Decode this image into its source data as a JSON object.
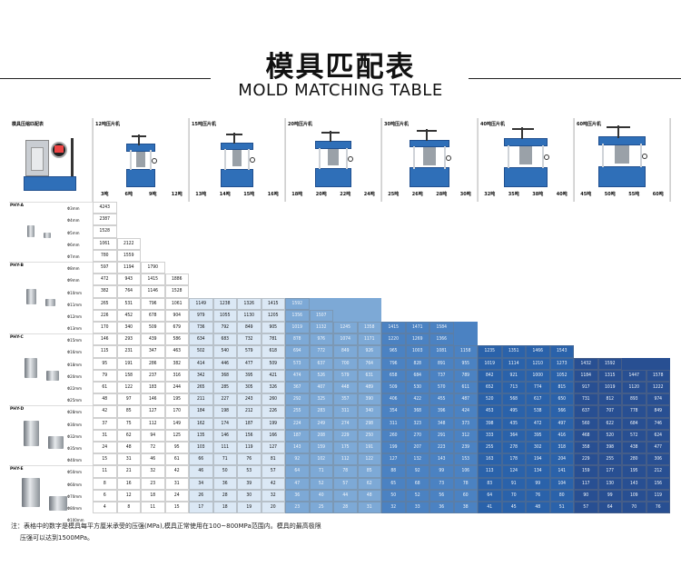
{
  "header": {
    "title_zh": "模具匹配表",
    "title_en": "MOLD MATCHING TABLE"
  },
  "corner_label": "模具压缩匹配表",
  "presses": [
    {
      "name": "12吨压片机",
      "tons": [
        "3吨",
        "6吨",
        "9吨",
        "12吨"
      ]
    },
    {
      "name": "15吨压片机",
      "tons": [
        "13吨",
        "14吨",
        "15吨",
        "16吨"
      ]
    },
    {
      "name": "20吨压片机",
      "tons": [
        "18吨",
        "20吨",
        "22吨",
        "24吨"
      ]
    },
    {
      "name": "30吨压片机",
      "tons": [
        "25吨",
        "26吨",
        "28吨",
        "30吨"
      ]
    },
    {
      "name": "40吨压片机",
      "tons": [
        "32吨",
        "35吨",
        "38吨",
        "40吨"
      ]
    },
    {
      "name": "60吨压片机",
      "tons": [
        "45吨",
        "50吨",
        "55吨",
        "60吨"
      ]
    }
  ],
  "die_groups": [
    {
      "name": "PHY-A",
      "sizes": [
        "Φ3mm",
        "Φ4mm",
        "Φ5mm",
        "Φ6mm",
        "Φ7mm"
      ]
    },
    {
      "name": "PHY-B",
      "sizes": [
        "Φ8mm",
        "Φ9mm",
        "Φ10mm",
        "Φ11mm",
        "Φ12mm",
        "Φ13mm"
      ]
    },
    {
      "name": "PHY-C",
      "sizes": [
        "Φ15mm",
        "Φ16mm",
        "Φ18mm",
        "Φ20mm",
        "Φ22mm",
        "Φ25mm"
      ]
    },
    {
      "name": "PHY-D",
      "sizes": [
        "Φ28mm",
        "Φ30mm",
        "Φ32mm",
        "Φ35mm",
        "Φ40mm"
      ]
    },
    {
      "name": "PHY-E",
      "sizes": [
        "Φ50mm",
        "Φ60mm",
        "Φ70mm",
        "Φ80mm",
        "Φ100mm"
      ]
    }
  ],
  "table_rows": [
    [
      "4243"
    ],
    [
      "2387"
    ],
    [
      "1528"
    ],
    [
      "1061",
      "2122"
    ],
    [
      "780",
      "1559"
    ],
    [
      "597",
      "1194",
      "1790"
    ],
    [
      "472",
      "943",
      "1415",
      "1886"
    ],
    [
      "382",
      "764",
      "1146",
      "1528"
    ],
    [
      "265",
      "531",
      "796",
      "1061",
      "1149",
      "1238",
      "1326",
      "1415",
      "1592"
    ],
    [
      "226",
      "452",
      "678",
      "904",
      "979",
      "1055",
      "1130",
      "1205",
      "1356",
      "1507"
    ],
    [
      "170",
      "340",
      "509",
      "679",
      "736",
      "792",
      "849",
      "905",
      "1019",
      "1132",
      "1245",
      "1358",
      "1415",
      "1471",
      "1584"
    ],
    [
      "146",
      "293",
      "439",
      "586",
      "634",
      "683",
      "732",
      "781",
      "878",
      "976",
      "1074",
      "1171",
      "1220",
      "1269",
      "1366"
    ],
    [
      "115",
      "231",
      "347",
      "463",
      "502",
      "540",
      "579",
      "618",
      "694",
      "772",
      "849",
      "926",
      "965",
      "1003",
      "1081",
      "1158",
      "1235",
      "1351",
      "1466",
      "1543"
    ],
    [
      "95",
      "191",
      "286",
      "382",
      "414",
      "446",
      "477",
      "509",
      "573",
      "637",
      "700",
      "764",
      "796",
      "828",
      "891",
      "955",
      "1019",
      "1114",
      "1210",
      "1273",
      "1432",
      "1592"
    ],
    [
      "79",
      "158",
      "237",
      "316",
      "342",
      "368",
      "395",
      "421",
      "474",
      "526",
      "579",
      "631",
      "658",
      "684",
      "737",
      "789",
      "842",
      "921",
      "1000",
      "1052",
      "1184",
      "1315",
      "1447",
      "1578"
    ],
    [
      "61",
      "122",
      "183",
      "244",
      "265",
      "285",
      "305",
      "326",
      "367",
      "407",
      "448",
      "489",
      "509",
      "530",
      "570",
      "611",
      "652",
      "713",
      "774",
      "815",
      "917",
      "1019",
      "1120",
      "1222"
    ],
    [
      "48",
      "97",
      "146",
      "195",
      "211",
      "227",
      "243",
      "260",
      "292",
      "325",
      "357",
      "390",
      "406",
      "422",
      "455",
      "487",
      "520",
      "568",
      "617",
      "650",
      "731",
      "812",
      "893",
      "974"
    ],
    [
      "42",
      "85",
      "127",
      "170",
      "184",
      "198",
      "212",
      "226",
      "255",
      "283",
      "311",
      "340",
      "354",
      "368",
      "396",
      "424",
      "453",
      "495",
      "538",
      "566",
      "637",
      "707",
      "778",
      "849"
    ],
    [
      "37",
      "75",
      "112",
      "149",
      "162",
      "174",
      "187",
      "199",
      "224",
      "249",
      "274",
      "298",
      "311",
      "323",
      "348",
      "373",
      "398",
      "435",
      "472",
      "497",
      "560",
      "622",
      "684",
      "746"
    ],
    [
      "31",
      "62",
      "94",
      "125",
      "135",
      "146",
      "156",
      "166",
      "187",
      "208",
      "229",
      "250",
      "260",
      "270",
      "291",
      "312",
      "333",
      "364",
      "395",
      "416",
      "468",
      "520",
      "572",
      "624"
    ],
    [
      "24",
      "48",
      "72",
      "95",
      "103",
      "111",
      "119",
      "127",
      "143",
      "159",
      "175",
      "191",
      "199",
      "207",
      "223",
      "239",
      "255",
      "278",
      "302",
      "318",
      "358",
      "398",
      "438",
      "477"
    ],
    [
      "15",
      "31",
      "46",
      "61",
      "66",
      "71",
      "76",
      "81",
      "92",
      "102",
      "112",
      "122",
      "127",
      "132",
      "143",
      "153",
      "163",
      "178",
      "194",
      "204",
      "229",
      "255",
      "280",
      "306"
    ],
    [
      "11",
      "21",
      "32",
      "42",
      "46",
      "50",
      "53",
      "57",
      "64",
      "71",
      "78",
      "85",
      "88",
      "92",
      "99",
      "106",
      "113",
      "124",
      "134",
      "141",
      "159",
      "177",
      "195",
      "212"
    ],
    [
      "8",
      "16",
      "23",
      "31",
      "34",
      "36",
      "39",
      "42",
      "47",
      "52",
      "57",
      "62",
      "65",
      "68",
      "73",
      "78",
      "83",
      "91",
      "99",
      "104",
      "117",
      "130",
      "143",
      "156"
    ],
    [
      "6",
      "12",
      "18",
      "24",
      "26",
      "28",
      "30",
      "32",
      "36",
      "40",
      "44",
      "48",
      "50",
      "52",
      "56",
      "60",
      "64",
      "70",
      "76",
      "80",
      "90",
      "99",
      "109",
      "119"
    ],
    [
      "4",
      "8",
      "11",
      "15",
      "17",
      "18",
      "19",
      "20",
      "23",
      "25",
      "28",
      "31",
      "32",
      "33",
      "36",
      "38",
      "41",
      "45",
      "48",
      "51",
      "57",
      "64",
      "70",
      "76"
    ]
  ],
  "colors": {
    "zone_15t": "#dbe8f5",
    "zone_20t": "#7da9d6",
    "zone_30t": "#4b82c2",
    "zone_40t": "#2a62aa",
    "zone_60t": "#284f92",
    "press_blue": "#2f6fb8"
  },
  "footnote": {
    "line1": "注：表格中的数字是模具每平方厘米承受的压强(MPa),模具正常使用在100~800MPa范围内。模具的最高极限",
    "line2": "压强可以达到1500MPa。"
  }
}
